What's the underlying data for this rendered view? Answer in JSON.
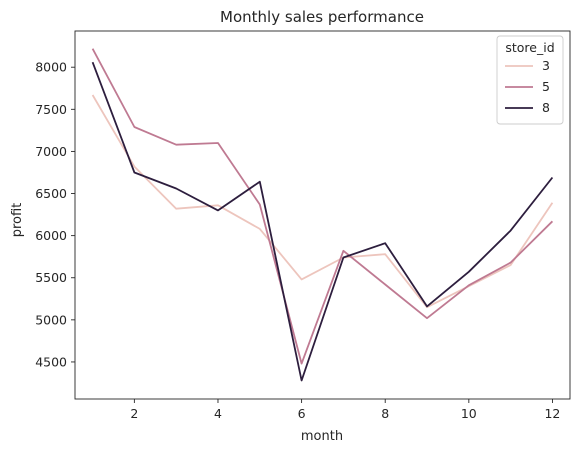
{
  "chart_data": {
    "type": "line",
    "title": "Monthly sales performance",
    "xlabel": "month",
    "ylabel": "profit",
    "xlim": [
      0.58,
      12.42
    ],
    "ylim": [
      4060,
      8430
    ],
    "xticks": [
      2,
      4,
      6,
      8,
      10,
      12
    ],
    "yticks": [
      4500,
      5000,
      5500,
      6000,
      6500,
      7000,
      7500,
      8000
    ],
    "grid": false,
    "legend": {
      "title": "store_id",
      "position": "top-right"
    },
    "x": [
      1,
      2,
      3,
      4,
      5,
      6,
      7,
      8,
      9,
      10,
      11,
      12
    ],
    "series": [
      {
        "name": "3",
        "color": "#edc5bd",
        "values": [
          7670,
          6820,
          6320,
          6360,
          6080,
          5480,
          5740,
          5780,
          5150,
          5400,
          5650,
          6390
        ]
      },
      {
        "name": "5",
        "color": "#bf7a92",
        "values": [
          8220,
          7290,
          7080,
          7100,
          6370,
          4480,
          5820,
          5420,
          5020,
          5410,
          5680,
          6170
        ]
      },
      {
        "name": "8",
        "color": "#2d1e3e",
        "values": [
          8060,
          6750,
          6560,
          6300,
          6640,
          4280,
          5740,
          5910,
          5160,
          5570,
          6060,
          6690
        ]
      }
    ]
  }
}
